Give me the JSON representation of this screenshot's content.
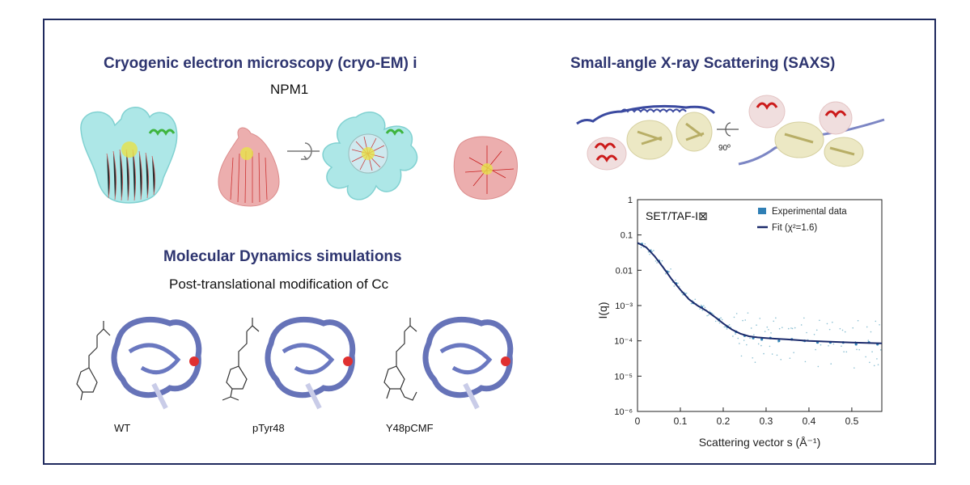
{
  "cryo": {
    "title": "Cryogenic electron microscopy (cryo-EM) i",
    "subtitle": "NPM1"
  },
  "saxs": {
    "title": "Small-angle X-ray Scattering (SAXS)",
    "rotation_label": "90º"
  },
  "md": {
    "title": "Molecular Dynamics simulations",
    "subtitle": "Post-translational modification of Cc",
    "variants": [
      "WT",
      "pTyr48",
      "Y48pCMF"
    ]
  },
  "colors": {
    "title": "#2e3570",
    "frame": "#1f2a5e",
    "fit_line": "#1b2a6b",
    "experimental": "#2f7fb5",
    "density_cyan": "#7fd6d6",
    "density_pink": "#e89a9a",
    "protein_blue": "#5b6bb5",
    "helix_red": "#d41f1f"
  },
  "chart_data": {
    "type": "scatter",
    "title": "SET/TAF-I⊠",
    "xlabel": "Scattering vector s (Å⁻¹)",
    "ylabel": "I(q)",
    "x_scale": "linear",
    "y_scale": "log",
    "xlim": [
      0,
      0.57
    ],
    "ylim": [
      1e-06,
      1
    ],
    "x_ticks": [
      "0",
      "0.1",
      "0.2",
      "0.3",
      "0.4",
      "0.5"
    ],
    "y_ticks": [
      "1",
      "0.1",
      "0.01",
      "10⁻³",
      "10⁻⁴",
      "10⁻⁵",
      "10⁻⁶"
    ],
    "legend": [
      "Experimental data",
      "Fit (χ²=1.6)"
    ],
    "legend_position": "top-right",
    "series": [
      {
        "name": "Fit (χ²=1.6)",
        "kind": "line",
        "x": [
          0.0,
          0.02,
          0.04,
          0.06,
          0.08,
          0.1,
          0.12,
          0.14,
          0.16,
          0.18,
          0.2,
          0.22,
          0.24,
          0.26,
          0.28,
          0.3,
          0.32,
          0.35,
          0.4,
          0.45,
          0.5,
          0.57
        ],
        "y": [
          0.06,
          0.045,
          0.025,
          0.012,
          0.0055,
          0.0028,
          0.0015,
          0.001,
          0.00072,
          0.00048,
          0.00031,
          0.00021,
          0.00016,
          0.000135,
          0.000125,
          0.00012,
          0.000115,
          0.00011,
          0.0001,
          9.4e-05,
          9e-05,
          8.5e-05
        ]
      },
      {
        "name": "Experimental data",
        "kind": "scatter",
        "x": [
          0.01,
          0.03,
          0.05,
          0.07,
          0.09,
          0.11,
          0.13,
          0.15,
          0.17,
          0.19,
          0.21,
          0.23,
          0.25,
          0.27,
          0.29,
          0.31,
          0.33,
          0.36,
          0.39,
          0.42,
          0.45,
          0.48,
          0.51,
          0.54,
          0.56
        ],
        "y": [
          0.055,
          0.035,
          0.018,
          0.009,
          0.0042,
          0.0021,
          0.0012,
          0.0009,
          0.0006,
          0.0004,
          0.00025,
          0.00018,
          0.00014,
          0.00012,
          0.00011,
          0.00012,
          0.0001,
          0.00011,
          0.0001,
          9e-05,
          9e-05,
          9e-05,
          8e-05,
          9e-05,
          8e-05
        ]
      }
    ]
  }
}
